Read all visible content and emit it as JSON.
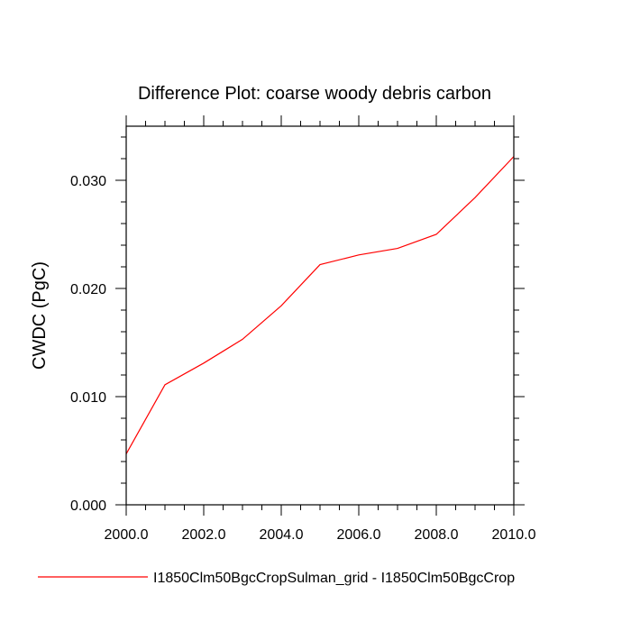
{
  "chart_data": {
    "type": "line",
    "title": "Difference Plot: coarse woody debris carbon",
    "xlabel": "",
    "ylabel": "CWDC  (PgC)",
    "xlim": [
      2000,
      2010
    ],
    "ylim": [
      0,
      0.035
    ],
    "xticks": [
      2000,
      2002,
      2004,
      2006,
      2008,
      2010
    ],
    "xtick_labels": [
      "2000.0",
      "2002.0",
      "2004.0",
      "2006.0",
      "2008.0",
      "2010.0"
    ],
    "yticks": [
      0,
      0.01,
      0.02,
      0.03
    ],
    "ytick_labels": [
      "0.000",
      "0.010",
      "0.020",
      "0.030"
    ],
    "grid": false,
    "legend_position": "bottom",
    "series": [
      {
        "name": "I1850Clm50BgcCropSulman_grid - I1850Clm50BgcCrop",
        "color": "#ff0000",
        "x": [
          2000,
          2001,
          2002,
          2003,
          2004,
          2005,
          2006,
          2007,
          2008,
          2009,
          2010
        ],
        "y": [
          0.0047,
          0.0111,
          0.0131,
          0.0153,
          0.0184,
          0.0222,
          0.0231,
          0.0237,
          0.025,
          0.0284,
          0.0322
        ]
      }
    ]
  }
}
